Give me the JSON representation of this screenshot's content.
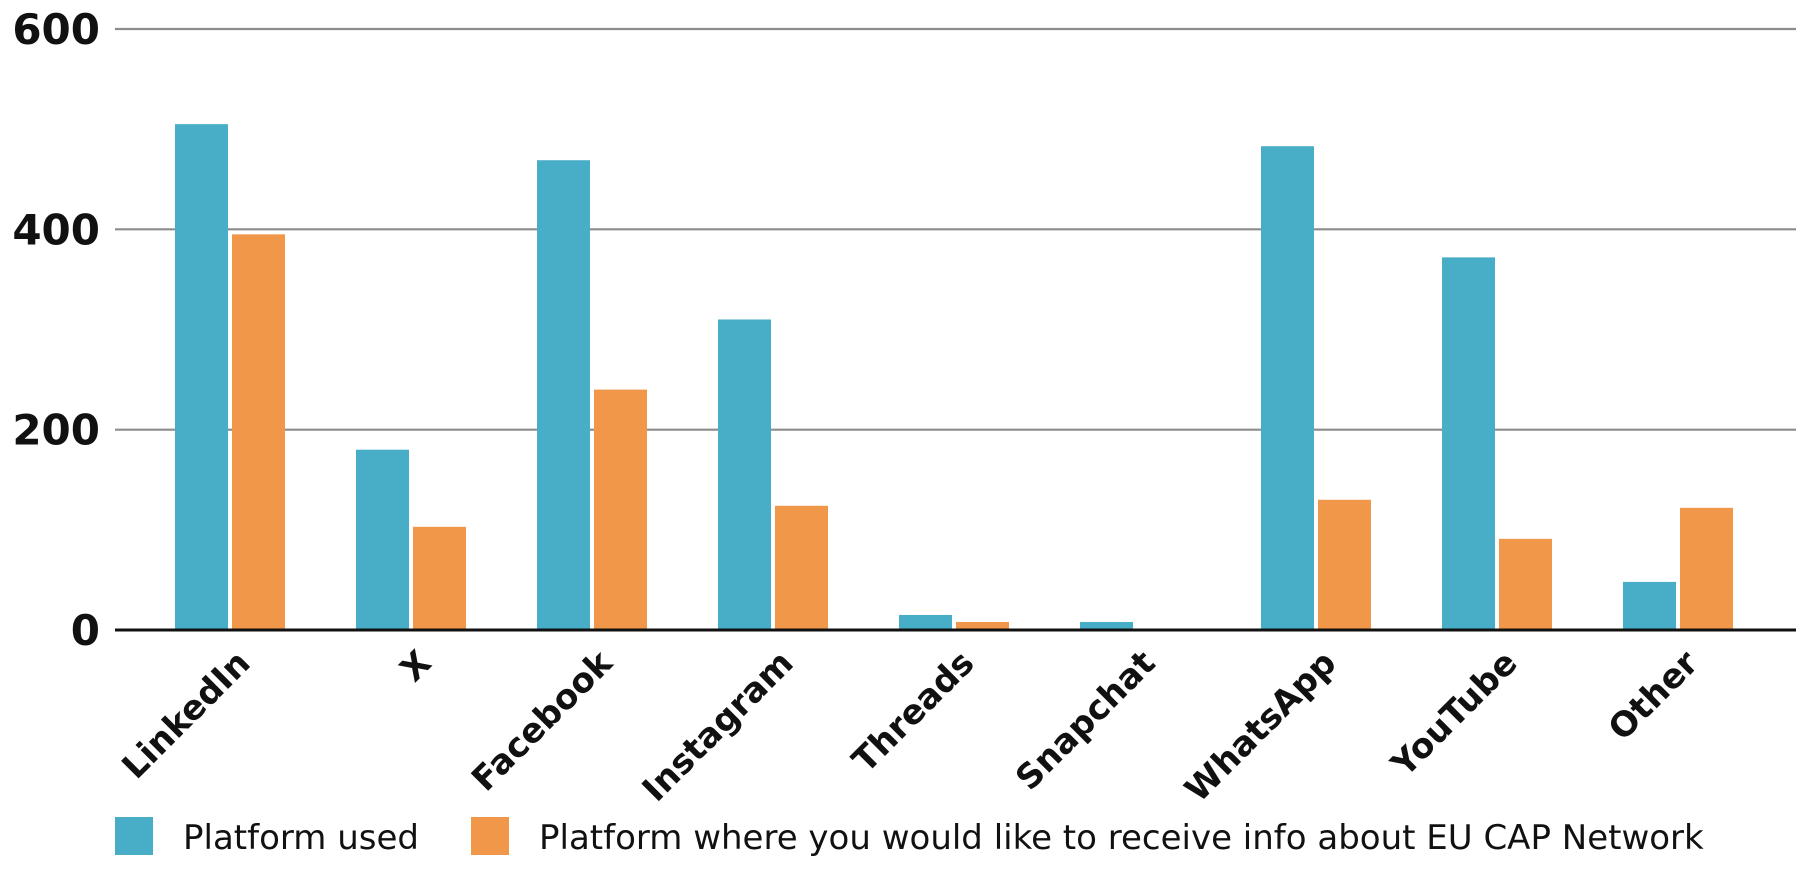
{
  "chart_data": {
    "type": "bar",
    "title": "",
    "xlabel": "",
    "ylabel": "",
    "ylim": [
      0,
      600
    ],
    "yticks": [
      0,
      200,
      400,
      600
    ],
    "grid": true,
    "legend_position": "bottom",
    "categories": [
      "LinkedIn",
      "X",
      "Facebook",
      "Instagram",
      "Threads",
      "Snapchat",
      "WhatsApp",
      "YouTube",
      "Other"
    ],
    "series": [
      {
        "name": "Platform used",
        "color": "#48adc7",
        "values": [
          505,
          180,
          469,
          310,
          15,
          8,
          483,
          372,
          48
        ]
      },
      {
        "name": "Platform where you would like to receive info about EU CAP Network",
        "color": "#f1974a",
        "values": [
          395,
          103,
          240,
          124,
          8,
          0,
          130,
          91,
          122
        ]
      }
    ]
  }
}
